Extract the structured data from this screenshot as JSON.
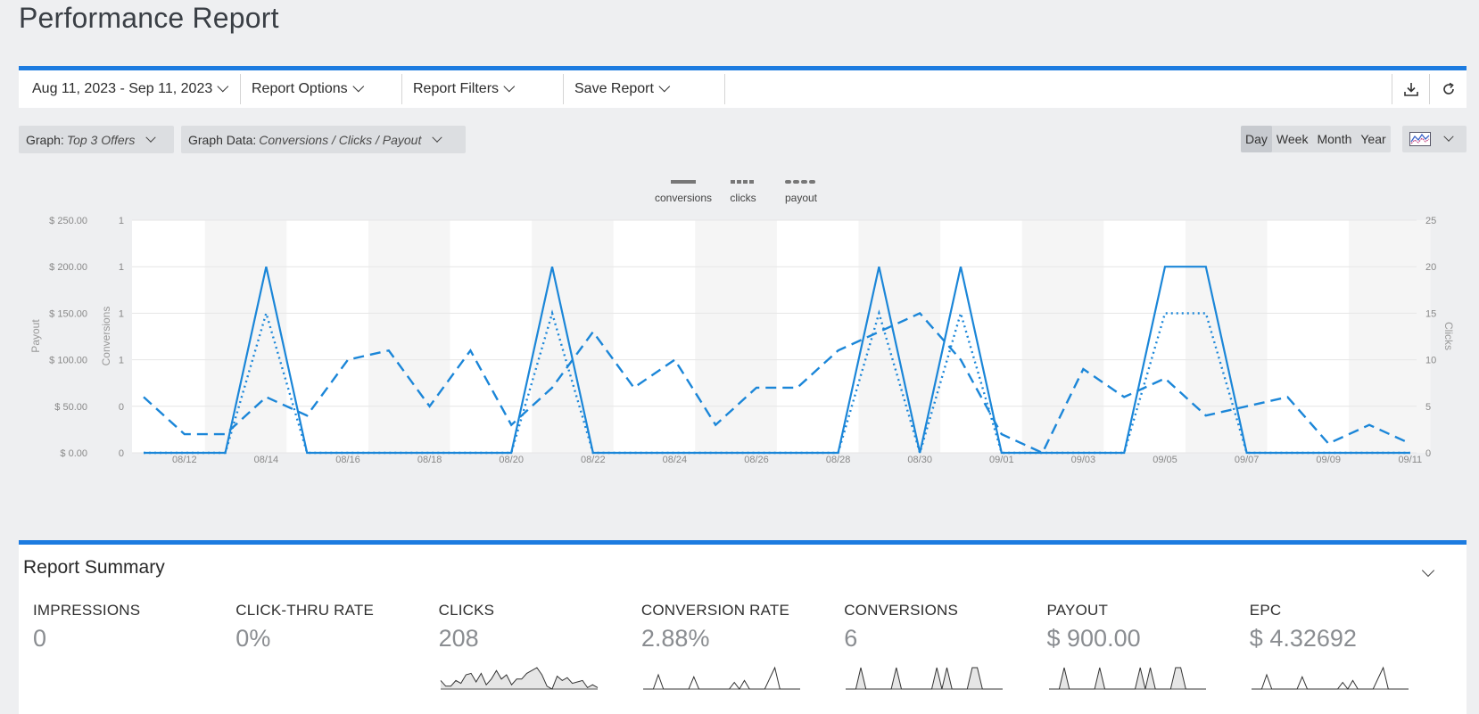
{
  "page": {
    "title": "Performance Report"
  },
  "toolbar": {
    "date_range": "Aug 11, 2023 - Sep 11, 2023",
    "report_options": "Report Options",
    "report_filters": "Report Filters",
    "save_report": "Save Report",
    "icons": [
      "download-icon",
      "refresh-icon"
    ]
  },
  "controls": {
    "graph_label": "Graph:",
    "graph_value": "Top 3 Offers",
    "graph_data_label": "Graph Data:",
    "graph_data_value": "Conversions / Clicks / Payout",
    "periods": [
      "Day",
      "Week",
      "Month",
      "Year"
    ],
    "active_period": "Day",
    "chart_type_icon": "line-chart-icon"
  },
  "chart_data": {
    "type": "line",
    "legend": [
      "conversions",
      "clicks",
      "payout"
    ],
    "legend_position": "top-center",
    "ylabel_left_outer": "Payout",
    "ylabel_left_inner": "Conversions",
    "ylabel_right": "Clicks",
    "payout_ticks": [
      "$ 0.00",
      "$ 50.00",
      "$ 100.00",
      "$ 150.00",
      "$ 200.00",
      "$ 250.00"
    ],
    "conversion_ticks": [
      "0",
      "0",
      "1",
      "1",
      "1",
      "1"
    ],
    "click_ticks": [
      "0",
      "5",
      "10",
      "15",
      "20",
      "25"
    ],
    "x_ticks": [
      "08/12",
      "08/14",
      "08/16",
      "08/18",
      "08/20",
      "08/22",
      "08/24",
      "08/26",
      "08/28",
      "08/30",
      "09/01",
      "09/03",
      "09/05",
      "09/07",
      "09/09",
      "09/11"
    ],
    "x": [
      "08/11",
      "08/12",
      "08/13",
      "08/14",
      "08/15",
      "08/16",
      "08/17",
      "08/18",
      "08/19",
      "08/20",
      "08/21",
      "08/22",
      "08/23",
      "08/24",
      "08/25",
      "08/26",
      "08/27",
      "08/28",
      "08/29",
      "08/30",
      "08/31",
      "09/01",
      "09/02",
      "09/03",
      "09/04",
      "09/05",
      "09/06",
      "09/07",
      "09/08",
      "09/09",
      "09/10",
      "09/11"
    ],
    "ylim_payout": [
      0,
      250
    ],
    "ylim_clicks": [
      0,
      25
    ],
    "ylim_conversions": [
      0,
      1.25
    ],
    "series": [
      {
        "name": "conversions",
        "axis": "conversions",
        "style": "solid",
        "values": [
          0,
          0,
          0,
          1,
          0,
          0,
          0,
          0,
          0,
          0,
          1,
          0,
          0,
          0,
          0,
          0,
          0,
          0,
          1,
          0,
          1,
          0,
          0,
          0,
          0,
          1,
          1,
          0,
          0,
          0,
          0,
          0
        ]
      },
      {
        "name": "clicks",
        "axis": "clicks",
        "style": "dashed",
        "values": [
          6,
          2,
          2,
          6,
          4,
          10,
          11,
          5,
          11,
          3,
          7,
          13,
          7,
          10,
          3,
          7,
          7,
          11,
          13,
          15,
          10,
          2,
          0,
          9,
          6,
          8,
          4,
          5,
          6,
          1,
          3,
          1
        ]
      },
      {
        "name": "payout",
        "axis": "payout",
        "style": "dotted",
        "values": [
          0,
          0,
          0,
          150,
          0,
          0,
          0,
          0,
          0,
          0,
          150,
          0,
          0,
          0,
          0,
          0,
          0,
          0,
          150,
          0,
          150,
          0,
          0,
          0,
          0,
          150,
          150,
          0,
          0,
          0,
          0,
          0
        ]
      }
    ],
    "colors": {
      "line": "#1b86d8"
    }
  },
  "summary": {
    "title": "Report Summary",
    "metrics": [
      {
        "label": "IMPRESSIONS",
        "value": "0",
        "spark": []
      },
      {
        "label": "CLICK-THRU RATE",
        "value": "0%",
        "spark": []
      },
      {
        "label": "CLICKS",
        "value": "208",
        "spark": [
          6,
          2,
          2,
          6,
          4,
          10,
          11,
          5,
          11,
          3,
          7,
          13,
          7,
          10,
          3,
          7,
          7,
          11,
          13,
          15,
          10,
          2,
          0,
          9,
          6,
          8,
          4,
          5,
          6,
          1,
          3,
          1
        ],
        "fill": true
      },
      {
        "label": "CONVERSION RATE",
        "value": "2.88%",
        "spark": [
          0,
          0,
          0,
          16.7,
          0,
          0,
          0,
          0,
          0,
          0,
          14.3,
          0,
          0,
          0,
          0,
          0,
          0,
          0,
          7.7,
          0,
          10,
          0,
          0,
          0,
          0,
          12.5,
          25,
          0,
          0,
          0,
          0,
          0
        ],
        "fill": false
      },
      {
        "label": "CONVERSIONS",
        "value": "6",
        "spark": [
          0,
          0,
          0,
          1,
          0,
          0,
          0,
          0,
          0,
          0,
          1,
          0,
          0,
          0,
          0,
          0,
          0,
          0,
          1,
          0,
          1,
          0,
          0,
          0,
          0,
          1,
          1,
          0,
          0,
          0,
          0,
          0
        ],
        "fill": true
      },
      {
        "label": "PAYOUT",
        "value": "$ 900.00",
        "spark": [
          0,
          0,
          0,
          150,
          0,
          0,
          0,
          0,
          0,
          0,
          150,
          0,
          0,
          0,
          0,
          0,
          0,
          0,
          150,
          0,
          150,
          0,
          0,
          0,
          0,
          150,
          150,
          0,
          0,
          0,
          0,
          0
        ],
        "fill": true
      },
      {
        "label": "EPC",
        "value": "$ 4.32692",
        "spark": [
          0,
          0,
          0,
          25,
          0,
          0,
          0,
          0,
          0,
          0,
          21.4,
          0,
          0,
          0,
          0,
          0,
          0,
          0,
          11.5,
          0,
          15,
          0,
          0,
          0,
          0,
          18.75,
          37.5,
          0,
          0,
          0,
          0,
          0
        ],
        "fill": false
      }
    ]
  }
}
